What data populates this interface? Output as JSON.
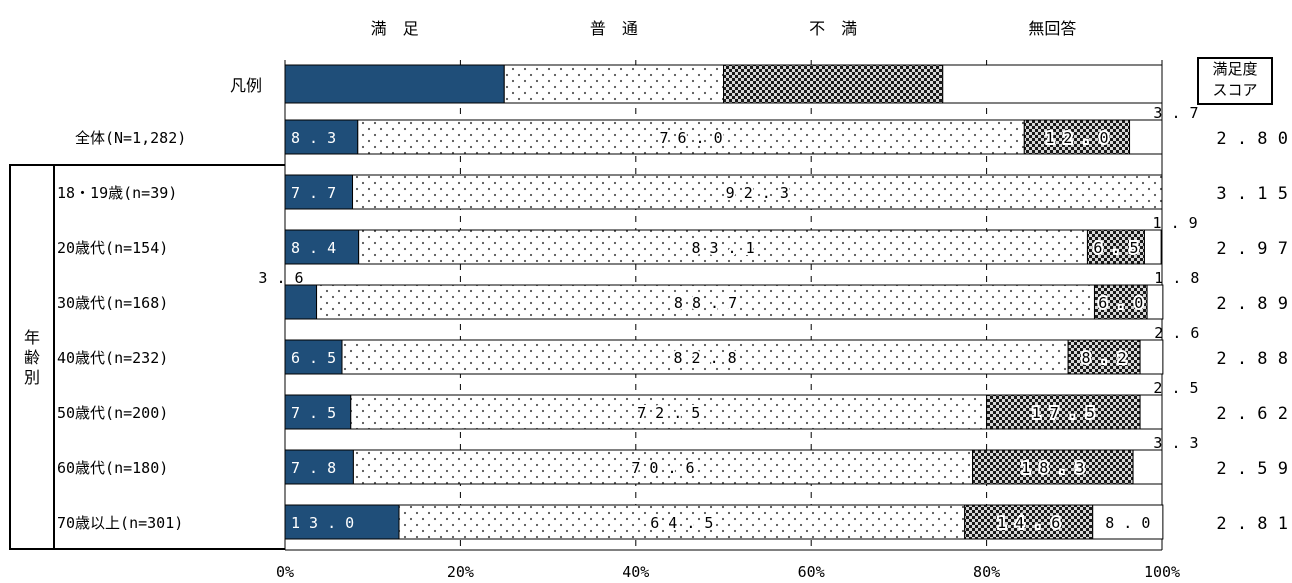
{
  "chart_data": {
    "type": "bar",
    "orientation": "horizontal",
    "stacked": true,
    "xlim": [
      0,
      100
    ],
    "x_ticks": [
      "0%",
      "20%",
      "40%",
      "60%",
      "80%",
      "100%"
    ],
    "legend": [
      "満　足",
      "普　通",
      "不　満",
      "無回答"
    ],
    "legend_row_label": "凡例",
    "score_header": [
      "満足度",
      "スコア"
    ],
    "group_label": "年齢別",
    "colors": {
      "satisfied": "#1f4e79",
      "normal": "#ffffff",
      "dissatisfied": "#2b2b2b",
      "no_answer": "#ffffff"
    },
    "categories": [
      "全体(N=1,282)",
      "18・19歳(n=39)",
      "20歳代(n=154)",
      "30歳代(n=168)",
      "40歳代(n=232)",
      "50歳代(n=200)",
      "60歳代(n=180)",
      "70歳以上(n=301)"
    ],
    "series": [
      {
        "name": "満　足",
        "values": [
          8.3,
          7.7,
          8.4,
          3.6,
          6.5,
          7.5,
          7.8,
          13.0
        ],
        "labels": [
          "8.3",
          "7.7",
          "8.4",
          "3.6",
          "6.5",
          "7.5",
          "7.8",
          "13.0"
        ]
      },
      {
        "name": "普　通",
        "values": [
          76.0,
          92.3,
          83.1,
          88.7,
          82.8,
          72.5,
          70.6,
          64.5
        ],
        "labels": [
          "76.0",
          "92.3",
          "83.1",
          "88.7",
          "82.8",
          "72.5",
          "70.6",
          "64.5"
        ]
      },
      {
        "name": "不　満",
        "values": [
          12.0,
          0,
          6.5,
          6.0,
          8.2,
          17.5,
          18.3,
          14.6
        ],
        "labels": [
          "12.0",
          "",
          "6.5",
          "6.0",
          "8.2",
          "17.5",
          "18.3",
          "14.6"
        ]
      },
      {
        "name": "無回答",
        "values": [
          3.7,
          0,
          1.9,
          1.8,
          2.6,
          2.5,
          3.3,
          8.0
        ],
        "labels": [
          "3.7",
          "",
          "1.9",
          "1.8",
          "2.6",
          "2.5",
          "3.3",
          "8.0"
        ]
      }
    ],
    "scores": [
      "2.80",
      "3.15",
      "2.97",
      "2.89",
      "2.88",
      "2.62",
      "2.59",
      "2.81"
    ]
  }
}
